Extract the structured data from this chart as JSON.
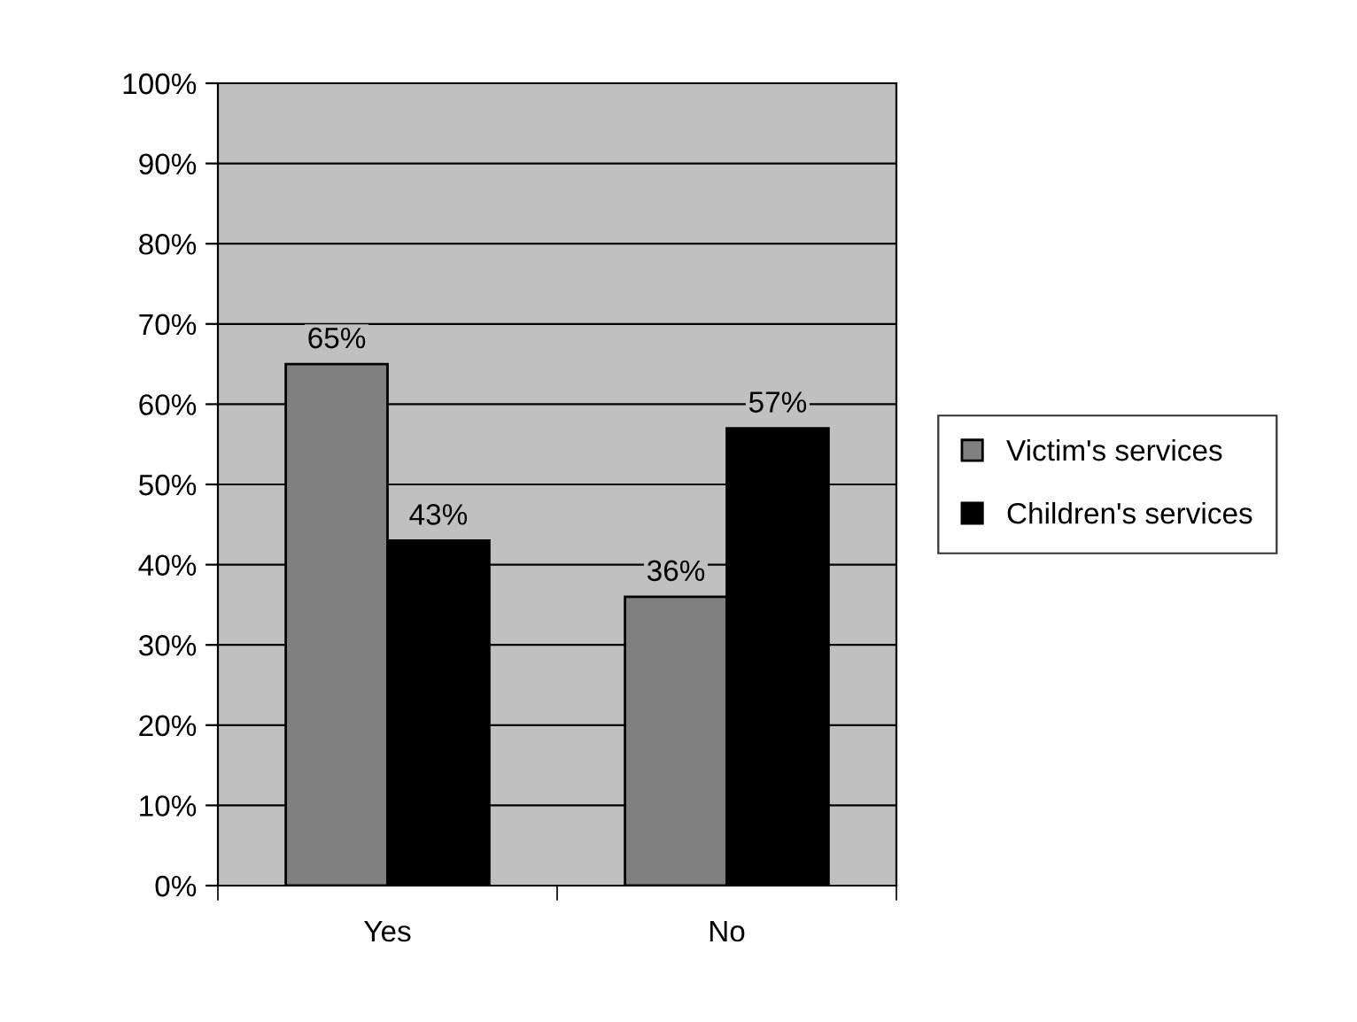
{
  "chart_data": {
    "type": "bar",
    "categories": [
      "Yes",
      "No"
    ],
    "series": [
      {
        "name": "Victim's services",
        "color": "#808080",
        "values": [
          65,
          36
        ],
        "value_labels": [
          "65%",
          "36%"
        ]
      },
      {
        "name": "Children's services",
        "color": "#000000",
        "values": [
          43,
          57
        ],
        "value_labels": [
          "43%",
          "57%"
        ]
      }
    ],
    "ylim": [
      0,
      100
    ],
    "yticks": [
      {
        "value": 0,
        "label": "0%"
      },
      {
        "value": 10,
        "label": "10%"
      },
      {
        "value": 20,
        "label": "20%"
      },
      {
        "value": 30,
        "label": "30%"
      },
      {
        "value": 40,
        "label": "40%"
      },
      {
        "value": 50,
        "label": "50%"
      },
      {
        "value": 60,
        "label": "60%"
      },
      {
        "value": 70,
        "label": "70%"
      },
      {
        "value": 80,
        "label": "80%"
      },
      {
        "value": 90,
        "label": "90%"
      },
      {
        "value": 100,
        "label": "100%"
      }
    ],
    "grid": "y",
    "legend": "right"
  }
}
